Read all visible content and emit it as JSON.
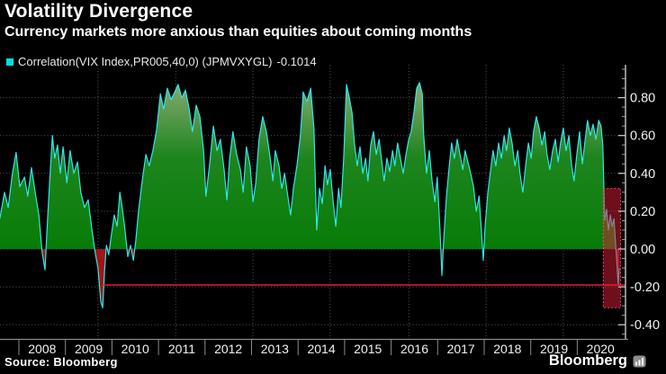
{
  "header": {
    "title": "Volatility Divergence",
    "subtitle": "Currency markets more anxious than equities about coming months"
  },
  "legend": {
    "swatch_color": "#00e0e0",
    "label": "Correlation(VIX Index,PR005,40,0) (JPMVXYGL)",
    "value": "-0.1014"
  },
  "footer": {
    "source": "Source: Bloomberg",
    "brand": "Bloomberg",
    "brand_icon": "bar-chart"
  },
  "colors": {
    "background": "#000000",
    "line": "#2ee8e8",
    "area_top": "#8aab76",
    "area_mid": "#1e851e",
    "area_zero": "#077c07",
    "neg_fill": "#a21414",
    "highlight_fill": "rgba(220,30,55,0.5)",
    "highlight_border": "rgba(255,80,100,0.9)",
    "alert_line": "#e41e2d",
    "grid": "#565656",
    "axis_line": "#c9c9c9",
    "minor_tick": "#a0a0a0",
    "year_tick": "#8a8a8a",
    "tick_label": "#f2f2f2"
  },
  "chart_data": {
    "type": "area",
    "title": "Correlation(VIX Index,PR005,40,0) (JPMVXYGL)",
    "last_value": -0.1014,
    "x_axis": {
      "labels": [
        "2008",
        "2009",
        "2010",
        "2011",
        "2012",
        "2013",
        "2014",
        "2015",
        "2016",
        "2017",
        "2018",
        "2019",
        "2020"
      ],
      "start_year": 2008
    },
    "y_axis": {
      "ticks": [
        0.8,
        0.6,
        0.4,
        0.2,
        0,
        -0.2,
        -0.4
      ],
      "tick_labels": [
        "0.80",
        "0.60",
        "0.40",
        "0.20",
        "0.00",
        "-0.20",
        "-0.40"
      ],
      "minor_step": 0.05,
      "range": [
        -0.48,
        0.97
      ]
    },
    "vertical_gridlines": [
      2009.7,
      2011.37,
      2013.03,
      2014.69,
      2016.38,
      2018.04,
      2019.7
    ],
    "alert_line": {
      "value": -0.19,
      "start_year": 2009.78
    },
    "highlight_box": {
      "start_year": 2020.56,
      "end_year": 2020.93,
      "top": 0.32,
      "bottom": -0.31
    },
    "series": [
      {
        "name": "Correlation(VIX Index,PR005,40,0)",
        "points": [
          [
            2007.59,
            0.16
          ],
          [
            2007.69,
            0.3
          ],
          [
            2007.77,
            0.22
          ],
          [
            2007.86,
            0.4
          ],
          [
            2007.94,
            0.51
          ],
          [
            2008.02,
            0.33
          ],
          [
            2008.12,
            0.38
          ],
          [
            2008.19,
            0.28
          ],
          [
            2008.27,
            0.43
          ],
          [
            2008.35,
            0.3
          ],
          [
            2008.43,
            0.18
          ],
          [
            2008.5,
            -0.02
          ],
          [
            2008.56,
            -0.11
          ],
          [
            2008.6,
            0.08
          ],
          [
            2008.66,
            0.35
          ],
          [
            2008.72,
            0.6
          ],
          [
            2008.77,
            0.48
          ],
          [
            2008.83,
            0.55
          ],
          [
            2008.89,
            0.4
          ],
          [
            2008.95,
            0.54
          ],
          [
            2009.03,
            0.35
          ],
          [
            2009.1,
            0.52
          ],
          [
            2009.18,
            0.4
          ],
          [
            2009.26,
            0.46
          ],
          [
            2009.33,
            0.3
          ],
          [
            2009.41,
            0.22
          ],
          [
            2009.49,
            0.26
          ],
          [
            2009.57,
            0.1
          ],
          [
            2009.64,
            -0.02
          ],
          [
            2009.7,
            -0.1
          ],
          [
            2009.76,
            -0.28
          ],
          [
            2009.8,
            -0.31
          ],
          [
            2009.84,
            -0.12
          ],
          [
            2009.88,
            0.02
          ],
          [
            2009.93,
            -0.03
          ],
          [
            2009.99,
            0.08
          ],
          [
            2010.05,
            0.18
          ],
          [
            2010.11,
            0.12
          ],
          [
            2010.17,
            0.3
          ],
          [
            2010.22,
            0.22
          ],
          [
            2010.28,
            0.1
          ],
          [
            2010.34,
            -0.04
          ],
          [
            2010.4,
            0.02
          ],
          [
            2010.46,
            -0.06
          ],
          [
            2010.51,
            0.04
          ],
          [
            2010.57,
            0.2
          ],
          [
            2010.65,
            0.36
          ],
          [
            2010.73,
            0.5
          ],
          [
            2010.8,
            0.44
          ],
          [
            2010.88,
            0.52
          ],
          [
            2010.96,
            0.63
          ],
          [
            2011.04,
            0.82
          ],
          [
            2011.11,
            0.74
          ],
          [
            2011.19,
            0.85
          ],
          [
            2011.27,
            0.79
          ],
          [
            2011.35,
            0.83
          ],
          [
            2011.42,
            0.87
          ],
          [
            2011.5,
            0.8
          ],
          [
            2011.58,
            0.84
          ],
          [
            2011.66,
            0.74
          ],
          [
            2011.73,
            0.62
          ],
          [
            2011.81,
            0.76
          ],
          [
            2011.89,
            0.7
          ],
          [
            2011.97,
            0.52
          ],
          [
            2012.02,
            0.28
          ],
          [
            2012.1,
            0.45
          ],
          [
            2012.18,
            0.65
          ],
          [
            2012.26,
            0.52
          ],
          [
            2012.33,
            0.58
          ],
          [
            2012.41,
            0.42
          ],
          [
            2012.47,
            0.26
          ],
          [
            2012.53,
            0.48
          ],
          [
            2012.6,
            0.62
          ],
          [
            2012.68,
            0.5
          ],
          [
            2012.76,
            0.42
          ],
          [
            2012.82,
            0.3
          ],
          [
            2012.89,
            0.54
          ],
          [
            2012.97,
            0.44
          ],
          [
            2013.03,
            0.25
          ],
          [
            2013.09,
            0.35
          ],
          [
            2013.16,
            0.58
          ],
          [
            2013.24,
            0.7
          ],
          [
            2013.32,
            0.62
          ],
          [
            2013.4,
            0.48
          ],
          [
            2013.46,
            0.36
          ],
          [
            2013.51,
            0.52
          ],
          [
            2013.59,
            0.44
          ],
          [
            2013.65,
            0.32
          ],
          [
            2013.71,
            0.4
          ],
          [
            2013.78,
            0.28
          ],
          [
            2013.84,
            0.18
          ],
          [
            2013.9,
            0.32
          ],
          [
            2013.98,
            0.45
          ],
          [
            2014.05,
            0.6
          ],
          [
            2014.11,
            0.83
          ],
          [
            2014.19,
            0.78
          ],
          [
            2014.27,
            0.85
          ],
          [
            2014.34,
            0.64
          ],
          [
            2014.4,
            0.1
          ],
          [
            2014.46,
            0.32
          ],
          [
            2014.52,
            0.24
          ],
          [
            2014.58,
            0.44
          ],
          [
            2014.63,
            0.34
          ],
          [
            2014.69,
            0.42
          ],
          [
            2014.75,
            0.26
          ],
          [
            2014.81,
            0.12
          ],
          [
            2014.87,
            0.32
          ],
          [
            2014.92,
            0.22
          ],
          [
            2014.98,
            0.48
          ],
          [
            2015.04,
            0.87
          ],
          [
            2015.1,
            0.8
          ],
          [
            2015.16,
            0.72
          ],
          [
            2015.21,
            0.56
          ],
          [
            2015.27,
            0.44
          ],
          [
            2015.33,
            0.54
          ],
          [
            2015.39,
            0.4
          ],
          [
            2015.45,
            0.48
          ],
          [
            2015.5,
            0.36
          ],
          [
            2015.56,
            0.55
          ],
          [
            2015.62,
            0.62
          ],
          [
            2015.68,
            0.5
          ],
          [
            2015.74,
            0.58
          ],
          [
            2015.8,
            0.46
          ],
          [
            2015.85,
            0.36
          ],
          [
            2015.91,
            0.48
          ],
          [
            2015.97,
            0.41
          ],
          [
            2016.03,
            0.52
          ],
          [
            2016.08,
            0.44
          ],
          [
            2016.14,
            0.56
          ],
          [
            2016.2,
            0.48
          ],
          [
            2016.26,
            0.4
          ],
          [
            2016.32,
            0.5
          ],
          [
            2016.38,
            0.58
          ],
          [
            2016.43,
            0.62
          ],
          [
            2016.49,
            0.72
          ],
          [
            2016.55,
            0.85
          ],
          [
            2016.61,
            0.88
          ],
          [
            2016.67,
            0.82
          ],
          [
            2016.7,
            0.6
          ],
          [
            2016.76,
            0.4
          ],
          [
            2016.82,
            0.52
          ],
          [
            2016.88,
            0.36
          ],
          [
            2016.94,
            0.25
          ],
          [
            2016.99,
            0.38
          ],
          [
            2017.05,
            0.1
          ],
          [
            2017.09,
            -0.14
          ],
          [
            2017.13,
            0.05
          ],
          [
            2017.19,
            0.28
          ],
          [
            2017.25,
            0.44
          ],
          [
            2017.3,
            0.56
          ],
          [
            2017.36,
            0.48
          ],
          [
            2017.42,
            0.58
          ],
          [
            2017.48,
            0.5
          ],
          [
            2017.54,
            0.42
          ],
          [
            2017.59,
            0.52
          ],
          [
            2017.65,
            0.46
          ],
          [
            2017.71,
            0.4
          ],
          [
            2017.77,
            0.33
          ],
          [
            2017.83,
            0.2
          ],
          [
            2017.89,
            0.28
          ],
          [
            2017.94,
            0.1
          ],
          [
            2017.98,
            -0.06
          ],
          [
            2018.02,
            0.12
          ],
          [
            2018.08,
            0.3
          ],
          [
            2018.14,
            0.42
          ],
          [
            2018.19,
            0.52
          ],
          [
            2018.25,
            0.44
          ],
          [
            2018.31,
            0.56
          ],
          [
            2018.37,
            0.48
          ],
          [
            2018.43,
            0.6
          ],
          [
            2018.48,
            0.52
          ],
          [
            2018.54,
            0.64
          ],
          [
            2018.6,
            0.56
          ],
          [
            2018.66,
            0.44
          ],
          [
            2018.72,
            0.52
          ],
          [
            2018.77,
            0.4
          ],
          [
            2018.83,
            0.3
          ],
          [
            2018.89,
            0.44
          ],
          [
            2018.95,
            0.56
          ],
          [
            2019.01,
            0.48
          ],
          [
            2019.06,
            0.62
          ],
          [
            2019.12,
            0.7
          ],
          [
            2019.18,
            0.64
          ],
          [
            2019.24,
            0.55
          ],
          [
            2019.3,
            0.62
          ],
          [
            2019.35,
            0.5
          ],
          [
            2019.41,
            0.42
          ],
          [
            2019.47,
            0.52
          ],
          [
            2019.53,
            0.58
          ],
          [
            2019.59,
            0.46
          ],
          [
            2019.64,
            0.56
          ],
          [
            2019.7,
            0.64
          ],
          [
            2019.76,
            0.52
          ],
          [
            2019.82,
            0.6
          ],
          [
            2019.88,
            0.44
          ],
          [
            2019.93,
            0.36
          ],
          [
            2019.99,
            0.5
          ],
          [
            2020.05,
            0.62
          ],
          [
            2020.11,
            0.45
          ],
          [
            2020.17,
            0.58
          ],
          [
            2020.22,
            0.68
          ],
          [
            2020.28,
            0.6
          ],
          [
            2020.34,
            0.66
          ],
          [
            2020.4,
            0.58
          ],
          [
            2020.46,
            0.68
          ],
          [
            2020.51,
            0.65
          ],
          [
            2020.55,
            0.55
          ],
          [
            2020.59,
            0.15
          ],
          [
            2020.63,
            0.21
          ],
          [
            2020.67,
            0.1
          ],
          [
            2020.71,
            0.18
          ],
          [
            2020.75,
            0.12
          ],
          [
            2020.79,
            0.16
          ],
          [
            2020.82,
            0.04
          ],
          [
            2020.85,
            -0.06
          ],
          [
            2020.88,
            -0.19
          ],
          [
            2020.9,
            -0.1
          ]
        ]
      }
    ]
  }
}
